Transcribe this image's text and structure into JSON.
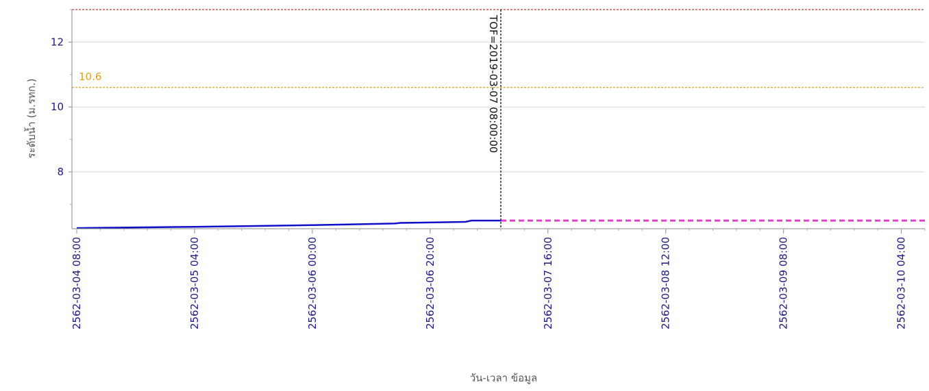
{
  "chart_data": {
    "type": "line",
    "title": "",
    "xlabel": "วัน-เวลา ข้อมูล",
    "ylabel": "ระดับน้ำ (ม.รทก.)",
    "ylim": [
      6.25,
      13.0
    ],
    "xlim": [
      "2562-03-04 08:00",
      "2562-03-10 08:00"
    ],
    "y_ticks": [
      8,
      10,
      12
    ],
    "x_ticks": [
      "2562-03-04 08:00",
      "2562-03-05 04:00",
      "2562-03-06 00:00",
      "2562-03-06 20:00",
      "2562-03-07 16:00",
      "2562-03-08 12:00",
      "2562-03-09 08:00",
      "2562-03-10 04:00"
    ],
    "grid": true,
    "series": [
      {
        "color": "#1010cc",
        "style": "solid",
        "x": [
          "2562-03-04 08:00",
          "2562-03-05 04:00",
          "2562-03-06 00:00",
          "2562-03-06 14:00",
          "2562-03-06 15:00",
          "2562-03-07 02:00",
          "2562-03-07 03:00",
          "2562-03-07 08:00"
        ],
        "y": [
          6.27,
          6.31,
          6.36,
          6.41,
          6.43,
          6.46,
          6.5,
          6.5
        ]
      },
      {
        "color": "#e040c8",
        "style": "dashed",
        "x": [
          "2562-03-07 08:00",
          "2562-03-10 08:00"
        ],
        "y": [
          6.5,
          6.5
        ]
      }
    ],
    "reference_lines": [
      {
        "y": 13.0,
        "color": "#c0392b",
        "label": ""
      },
      {
        "y": 10.6,
        "color": "#e0a020",
        "label": "10.6"
      }
    ],
    "vertical_marker": {
      "x": "2562-03-07 08:00",
      "label": "TOF=2019-03-07 08:00:00",
      "color": "#111111"
    }
  }
}
